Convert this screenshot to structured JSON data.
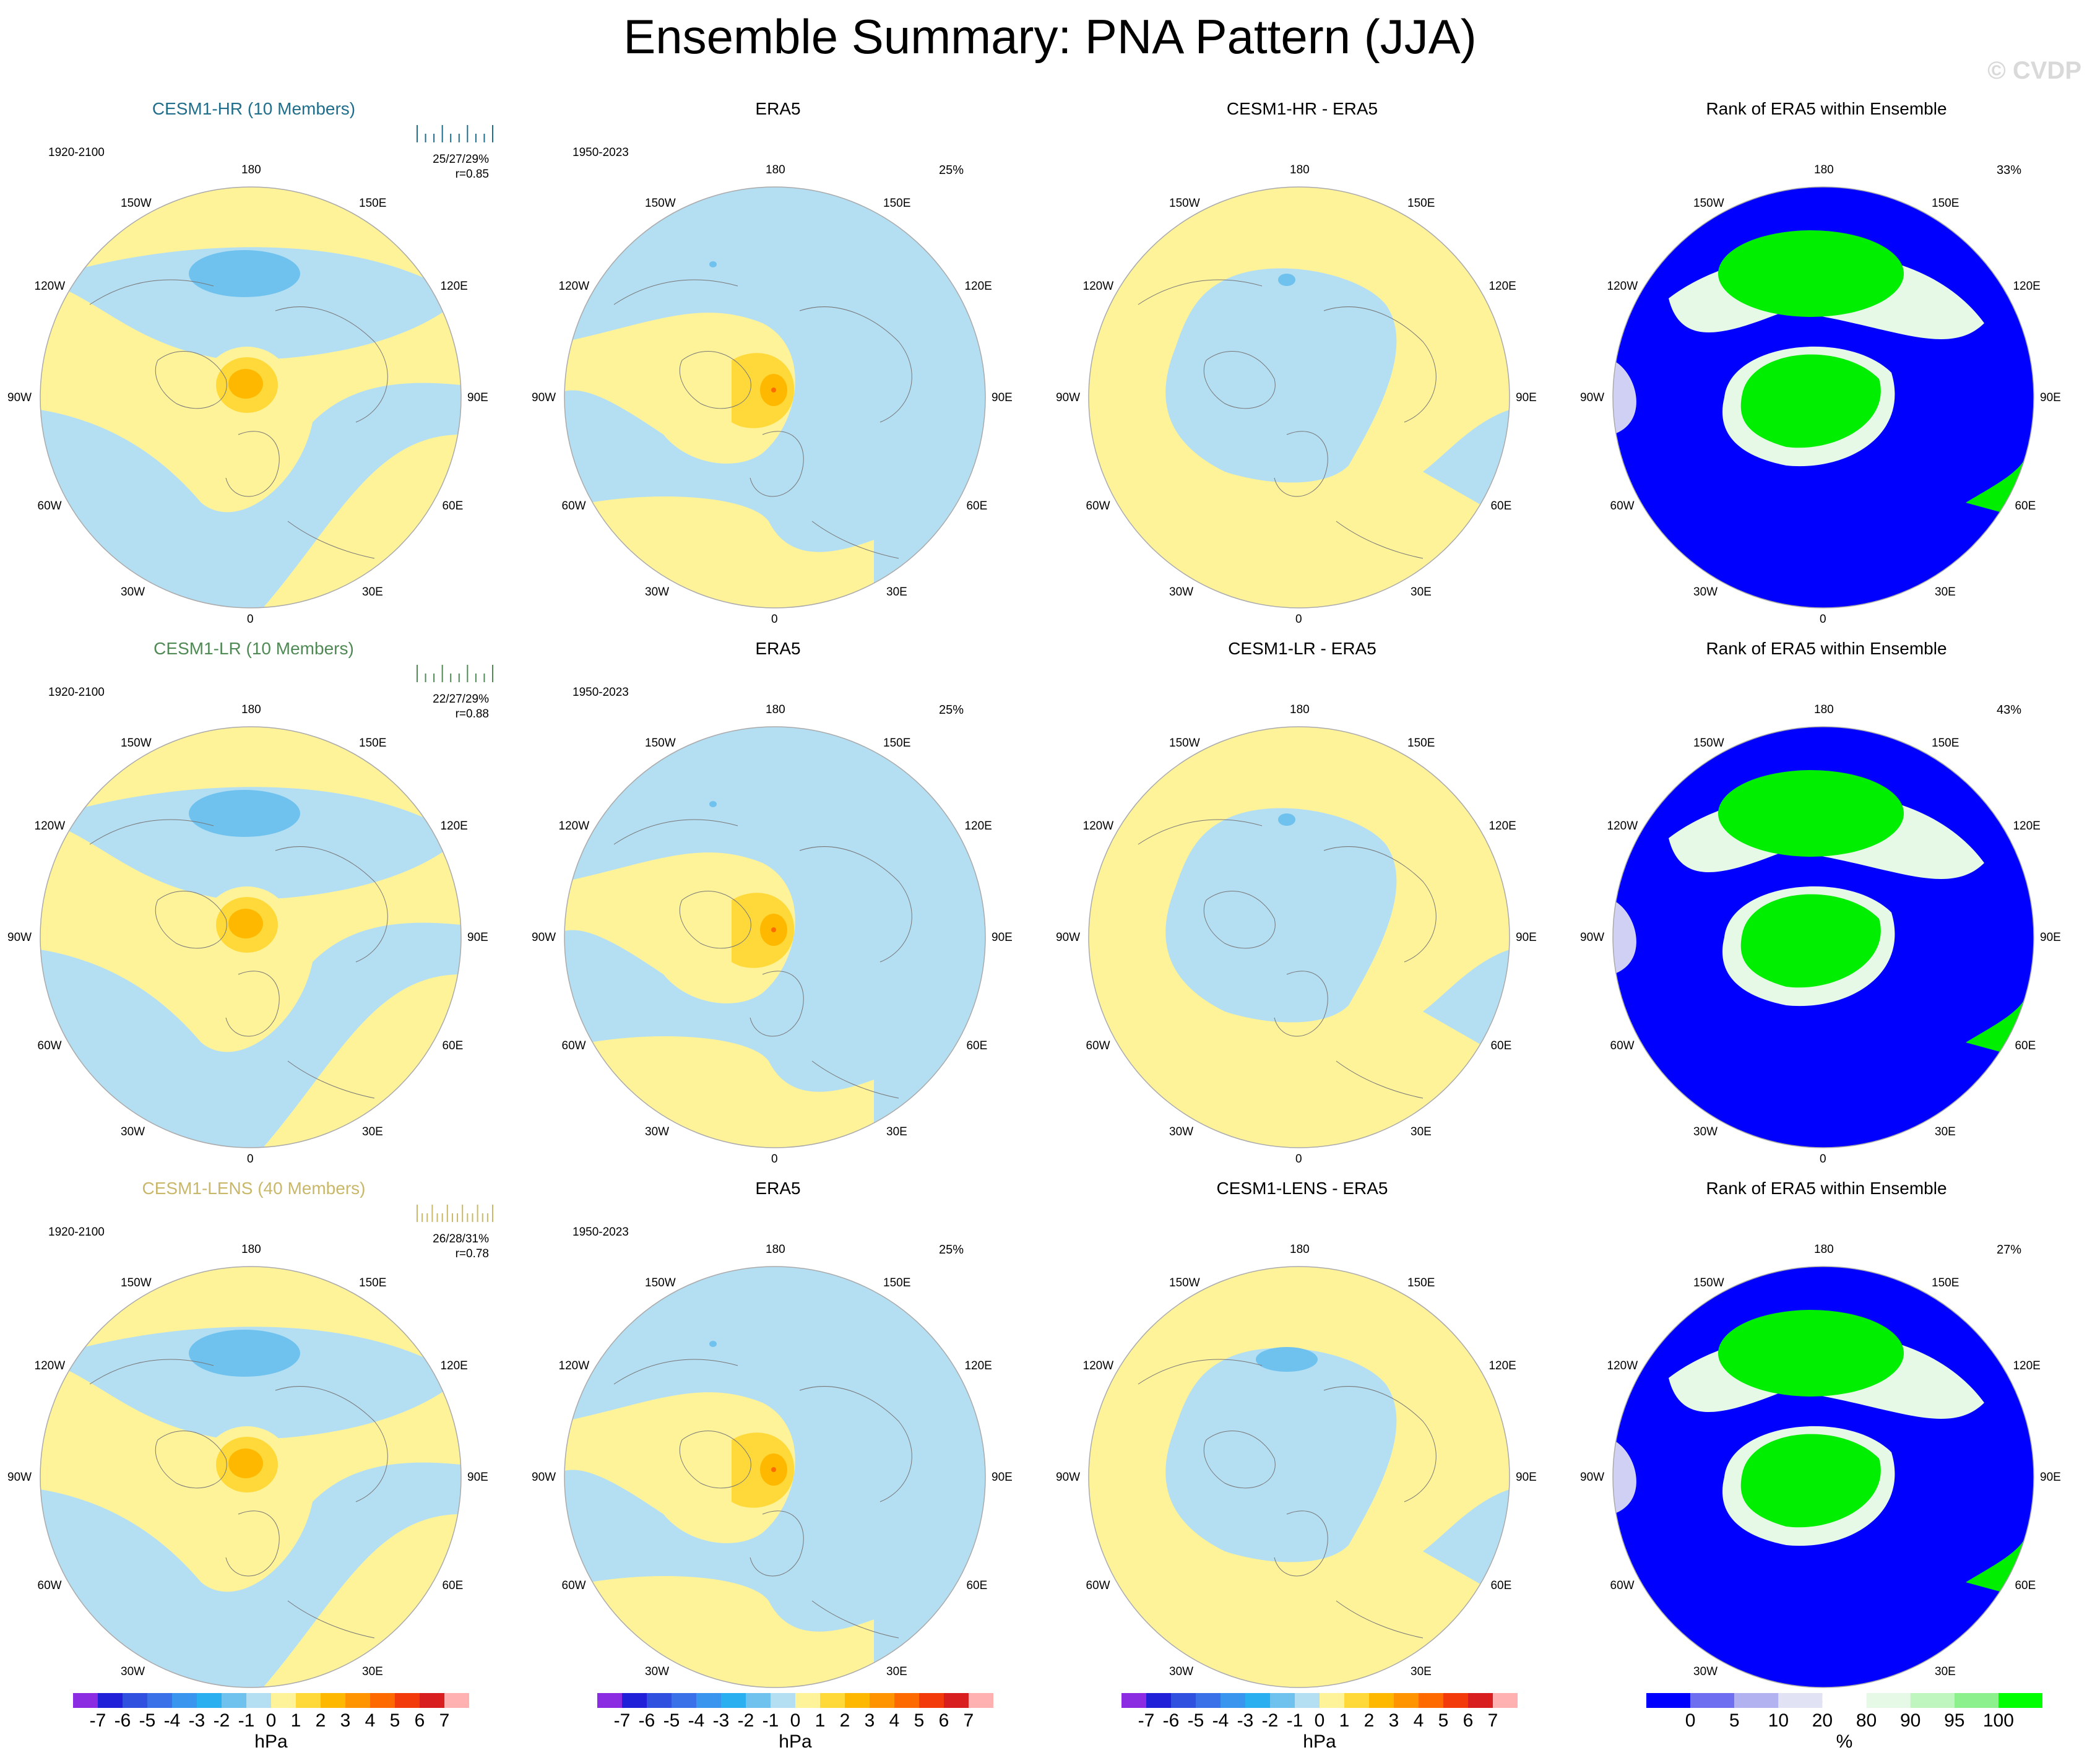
{
  "title": "Ensemble Summary: PNA Pattern (JJA)",
  "copyright": "© CVDP",
  "rows": [
    {
      "model": {
        "title": "CESM1-HR (10 Members)",
        "color": "#1f6e8c",
        "period": "1920-2100",
        "stat1": "25/27/29%",
        "stat2": "r=0.85"
      },
      "obs": {
        "title": "ERA5",
        "period": "1950-2023",
        "pct": "25%"
      },
      "diff": {
        "title": "CESM1-HR - ERA5"
      },
      "rank": {
        "title": "Rank of ERA5 within Ensemble",
        "pct": "33%"
      }
    },
    {
      "model": {
        "title": "CESM1-LR (10 Members)",
        "color": "#4f8a55",
        "period": "1920-2100",
        "stat1": "22/27/29%",
        "stat2": "r=0.88"
      },
      "obs": {
        "title": "ERA5",
        "period": "1950-2023",
        "pct": "25%"
      },
      "diff": {
        "title": "CESM1-LR - ERA5"
      },
      "rank": {
        "title": "Rank of ERA5 within Ensemble",
        "pct": "43%"
      }
    },
    {
      "model": {
        "title": "CESM1-LENS (40 Members)",
        "color": "#c9b86a",
        "period": "1920-2100",
        "stat1": "26/28/31%",
        "stat2": "r=0.78"
      },
      "obs": {
        "title": "ERA5",
        "period": "1950-2023",
        "pct": "25%"
      },
      "diff": {
        "title": "CESM1-LENS - ERA5"
      },
      "rank": {
        "title": "Rank of ERA5 within Ensemble",
        "pct": "27%"
      }
    }
  ],
  "longitude_labels": {
    "top": "180",
    "bottom": "0",
    "left": "90W",
    "right": "90E",
    "upper_left_1": "150W",
    "upper_left_2": "120W",
    "lower_left_1": "60W",
    "lower_left_2": "30W",
    "upper_right_1": "150E",
    "upper_right_2": "120E",
    "lower_right_1": "60E",
    "lower_right_2": "30E"
  },
  "colorbar_hpa": {
    "unit": "hPa",
    "ticks": [
      "-7",
      "-6",
      "-5",
      "-4",
      "-3",
      "-2",
      "-1",
      "0",
      "1",
      "2",
      "3",
      "4",
      "5",
      "6",
      "7"
    ],
    "colors": [
      "#8b2be2",
      "#2020d8",
      "#3050e0",
      "#3a70e8",
      "#3a95ee",
      "#2ab0f0",
      "#6fc2ee",
      "#b4def2",
      "#fff39a",
      "#ffd93a",
      "#ffb800",
      "#ff9400",
      "#ff6a00",
      "#f23a0a",
      "#d81e1e",
      "#ffb0b0"
    ]
  },
  "colorbar_rank": {
    "unit": "%",
    "ticks": [
      "0",
      "5",
      "10",
      "20",
      "80",
      "90",
      "95",
      "100"
    ],
    "colors": [
      "#0000ff",
      "#6e6ef0",
      "#b2b2f0",
      "#e2e2f5",
      "#ffffff",
      "#e6f8e6",
      "#bff5bf",
      "#8cf08c",
      "#00ff00"
    ]
  }
}
